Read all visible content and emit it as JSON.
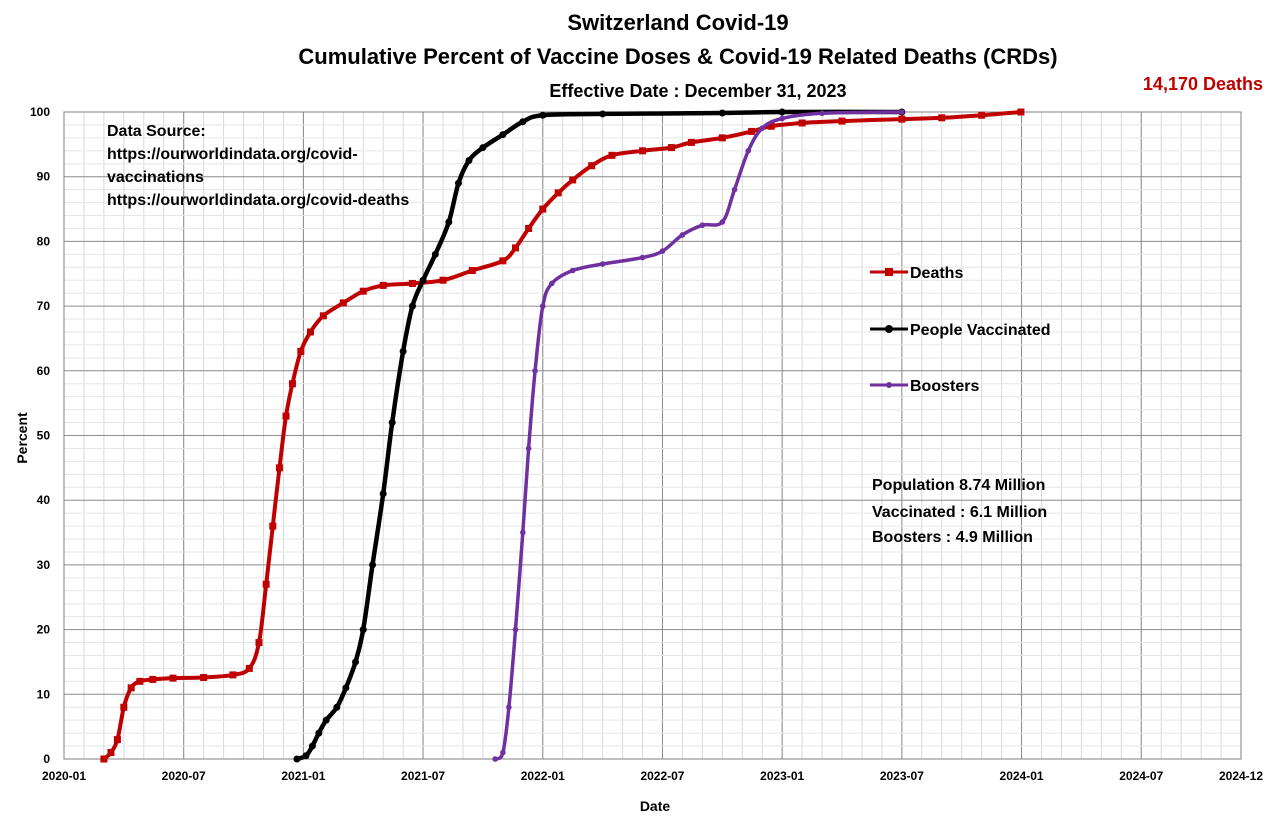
{
  "chart_data": {
    "type": "line",
    "title": "Switzerland Covid-19",
    "subtitle": "Cumulative Percent of Vaccine Doses & Covid-19 Related Deaths (CRDs)",
    "effective_date": "Effective Date : December 31, 2023",
    "deaths_total": "14,170 Deaths",
    "xlabel": "Date",
    "ylabel": "Percent",
    "ylim": [
      0,
      100
    ],
    "xlim": [
      "2020-01",
      "2024-12"
    ],
    "x_ticks": [
      "2020-01",
      "2020-07",
      "2021-01",
      "2021-07",
      "2022-01",
      "2022-07",
      "2023-01",
      "2023-07",
      "2024-01",
      "2024-07",
      "2024-12"
    ],
    "y_ticks": [
      "0",
      "10",
      "20",
      "30",
      "40",
      "50",
      "60",
      "70",
      "80",
      "90",
      "100"
    ],
    "grid": true,
    "legend_position": "right",
    "data_source_lines": [
      "Data Source:",
      "https://ourworldindata.org/covid-",
      "vaccinations",
      "https://ourworldindata.org/covid-deaths"
    ],
    "info_lines": [
      "Population  8.74 Million",
      "Vaccinated : 6.1 Million",
      "Boosters : 4.9 Million"
    ],
    "series": [
      {
        "name": "Deaths",
        "color": "#c00000",
        "marker": "square",
        "points": [
          [
            "2020-03-01",
            0
          ],
          [
            "2020-03-12",
            1
          ],
          [
            "2020-03-22",
            3
          ],
          [
            "2020-04-01",
            8
          ],
          [
            "2020-04-12",
            11
          ],
          [
            "2020-04-25",
            12
          ],
          [
            "2020-05-15",
            12.3
          ],
          [
            "2020-06-15",
            12.5
          ],
          [
            "2020-08-01",
            12.6
          ],
          [
            "2020-09-15",
            13
          ],
          [
            "2020-10-10",
            14
          ],
          [
            "2020-10-25",
            18
          ],
          [
            "2020-11-05",
            27
          ],
          [
            "2020-11-15",
            36
          ],
          [
            "2020-11-25",
            45
          ],
          [
            "2020-12-05",
            53
          ],
          [
            "2020-12-15",
            58
          ],
          [
            "2020-12-28",
            63
          ],
          [
            "2021-01-12",
            66
          ],
          [
            "2021-02-01",
            68.5
          ],
          [
            "2021-03-01",
            70.5
          ],
          [
            "2021-04-01",
            72.3
          ],
          [
            "2021-05-01",
            73.2
          ],
          [
            "2021-06-15",
            73.5
          ],
          [
            "2021-08-01",
            74
          ],
          [
            "2021-09-15",
            75.5
          ],
          [
            "2021-11-01",
            77
          ],
          [
            "2021-11-20",
            79
          ],
          [
            "2021-12-10",
            82
          ],
          [
            "2022-01-01",
            85
          ],
          [
            "2022-01-25",
            87.5
          ],
          [
            "2022-02-15",
            89.5
          ],
          [
            "2022-03-15",
            91.7
          ],
          [
            "2022-04-15",
            93.3
          ],
          [
            "2022-06-01",
            94
          ],
          [
            "2022-07-15",
            94.5
          ],
          [
            "2022-08-15",
            95.3
          ],
          [
            "2022-10-01",
            96
          ],
          [
            "2022-11-15",
            97
          ],
          [
            "2022-12-15",
            97.8
          ],
          [
            "2023-02-01",
            98.3
          ],
          [
            "2023-04-01",
            98.6
          ],
          [
            "2023-07-01",
            98.9
          ],
          [
            "2023-09-01",
            99.1
          ],
          [
            "2023-11-01",
            99.5
          ],
          [
            "2023-12-31",
            100
          ]
        ]
      },
      {
        "name": "People Vaccinated",
        "color": "#000000",
        "marker": "circle",
        "points": [
          [
            "2020-12-22",
            0
          ],
          [
            "2021-01-05",
            0.5
          ],
          [
            "2021-01-15",
            2
          ],
          [
            "2021-01-25",
            4
          ],
          [
            "2021-02-05",
            6
          ],
          [
            "2021-02-20",
            8
          ],
          [
            "2021-03-05",
            11
          ],
          [
            "2021-03-20",
            15
          ],
          [
            "2021-04-01",
            20
          ],
          [
            "2021-04-15",
            30
          ],
          [
            "2021-05-01",
            41
          ],
          [
            "2021-05-15",
            52
          ],
          [
            "2021-06-01",
            63
          ],
          [
            "2021-06-15",
            70
          ],
          [
            "2021-07-01",
            74
          ],
          [
            "2021-07-20",
            78
          ],
          [
            "2021-08-10",
            83
          ],
          [
            "2021-08-25",
            89
          ],
          [
            "2021-09-10",
            92.5
          ],
          [
            "2021-10-01",
            94.5
          ],
          [
            "2021-11-01",
            96.5
          ],
          [
            "2021-12-01",
            98.5
          ],
          [
            "2022-01-01",
            99.5
          ],
          [
            "2022-04-01",
            99.7
          ],
          [
            "2022-10-01",
            99.85
          ],
          [
            "2023-01-01",
            100
          ],
          [
            "2023-07-01",
            100
          ]
        ]
      },
      {
        "name": "Boosters",
        "color": "#7030a0",
        "marker": "diamond",
        "points": [
          [
            "2021-10-20",
            0
          ],
          [
            "2021-11-01",
            1
          ],
          [
            "2021-11-10",
            8
          ],
          [
            "2021-11-20",
            20
          ],
          [
            "2021-12-01",
            35
          ],
          [
            "2021-12-10",
            48
          ],
          [
            "2021-12-20",
            60
          ],
          [
            "2022-01-01",
            70
          ],
          [
            "2022-01-15",
            73.5
          ],
          [
            "2022-02-15",
            75.5
          ],
          [
            "2022-04-01",
            76.5
          ],
          [
            "2022-06-01",
            77.5
          ],
          [
            "2022-07-01",
            78.5
          ],
          [
            "2022-08-01",
            81
          ],
          [
            "2022-09-01",
            82.5
          ],
          [
            "2022-10-01",
            83
          ],
          [
            "2022-10-20",
            88
          ],
          [
            "2022-11-10",
            94
          ],
          [
            "2022-12-01",
            97.5
          ],
          [
            "2023-01-01",
            99
          ],
          [
            "2023-03-01",
            99.8
          ],
          [
            "2023-07-01",
            100
          ]
        ]
      }
    ]
  }
}
